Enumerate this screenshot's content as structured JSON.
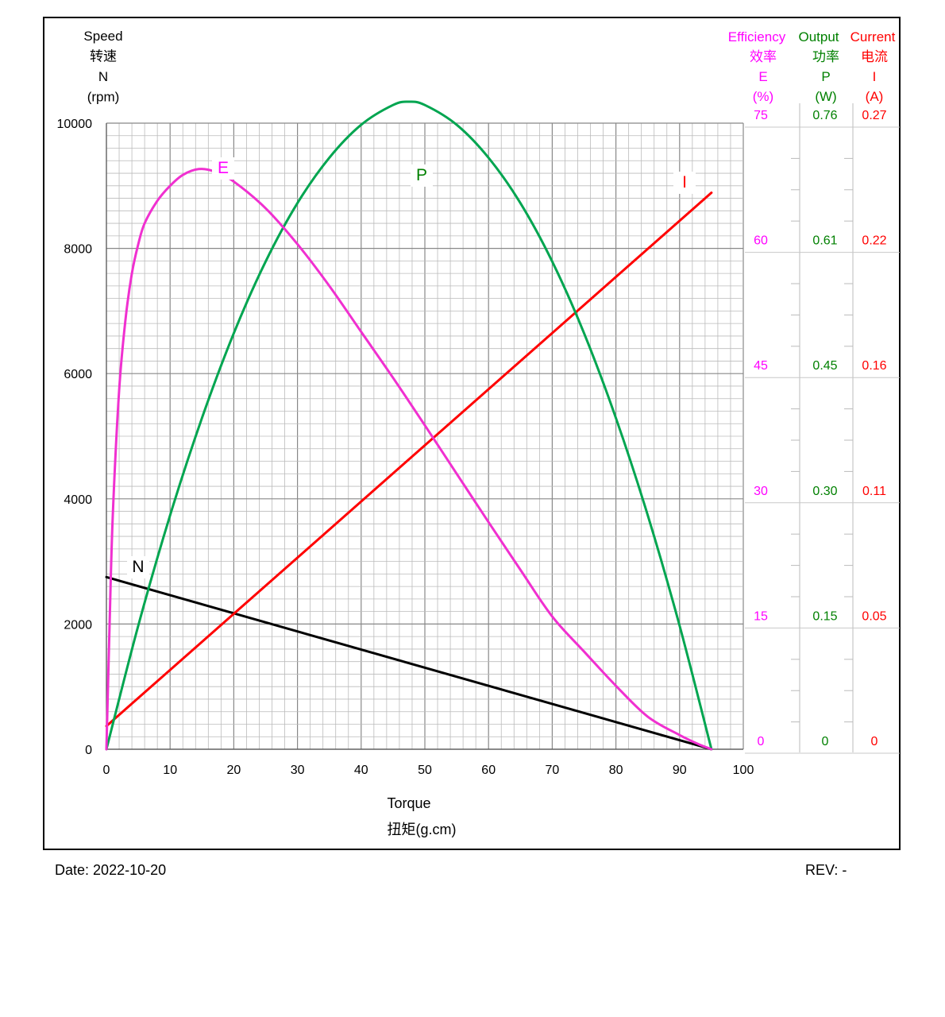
{
  "chart_data": {
    "type": "line",
    "x_axis": {
      "label_en": "Torque",
      "label_cn": "扭矩(g.cm)",
      "range": [
        0,
        100
      ],
      "ticks": [
        0,
        10,
        20,
        30,
        40,
        50,
        60,
        70,
        80,
        90,
        100
      ]
    },
    "y_axis_speed": {
      "label_lines": [
        "Speed",
        "转速",
        "N",
        "(rpm)"
      ],
      "range": [
        0,
        10000
      ],
      "ticks": [
        0,
        2000,
        4000,
        6000,
        8000,
        10000
      ]
    },
    "y_axis_efficiency": {
      "label_lines": [
        "Efficiency",
        "效率",
        "E",
        "(%)"
      ],
      "color": "#ff00ff",
      "range": [
        0,
        75
      ],
      "tick_labels": [
        "0",
        "15",
        "30",
        "45",
        "60",
        "75"
      ]
    },
    "y_axis_output": {
      "label_lines": [
        "Output",
        "功率",
        "P",
        "(W)"
      ],
      "color": "#008000",
      "range": [
        0,
        0.76
      ],
      "tick_labels": [
        "0",
        "0.15",
        "0.30",
        "0.45",
        "0.61",
        "0.76"
      ]
    },
    "y_axis_current": {
      "label_lines": [
        "Current",
        "电流",
        "I",
        "(A)"
      ],
      "color": "#ff0000",
      "range": [
        0,
        0.27
      ],
      "tick_labels": [
        "0",
        "0.05",
        "0.11",
        "0.16",
        "0.22",
        "0.27"
      ]
    },
    "series": [
      {
        "name": "N",
        "axis": "speed",
        "color": "#000000",
        "x": [
          0,
          95
        ],
        "y": [
          2750,
          0
        ]
      },
      {
        "name": "I",
        "axis": "current",
        "color": "#ff0000",
        "x": [
          0,
          95
        ],
        "y": [
          0.01,
          0.24
        ]
      },
      {
        "name": "P",
        "axis": "output",
        "color": "#00a550",
        "x": [
          0,
          5,
          10,
          15,
          20,
          25,
          30,
          35,
          40,
          45,
          47.5,
          50,
          55,
          60,
          65,
          70,
          75,
          80,
          85,
          90,
          95
        ],
        "y": [
          0,
          0.15,
          0.284,
          0.402,
          0.505,
          0.592,
          0.663,
          0.718,
          0.758,
          0.782,
          0.786,
          0.782,
          0.758,
          0.718,
          0.663,
          0.592,
          0.505,
          0.402,
          0.284,
          0.15,
          0
        ]
      },
      {
        "name": "E",
        "axis": "efficiency",
        "color": "#f030d0",
        "x": [
          0,
          0.5,
          1,
          2,
          3,
          4,
          5,
          6,
          8,
          10,
          12,
          14.5,
          17,
          20,
          25,
          30,
          35,
          40,
          45,
          50,
          55,
          60,
          65,
          70,
          75,
          80,
          85,
          90,
          93,
          95
        ],
        "y": [
          0,
          15.0,
          28.0,
          43.0,
          51.5,
          57.0,
          60.5,
          63.0,
          65.7,
          67.5,
          68.8,
          69.5,
          69.2,
          68.0,
          64.8,
          60.5,
          55.5,
          50.0,
          44.5,
          38.8,
          33.0,
          27.2,
          21.5,
          15.9,
          11.7,
          7.6,
          3.9,
          1.7,
          0.6,
          0
        ]
      }
    ],
    "curve_labels": [
      "N",
      "E",
      "P",
      "I"
    ]
  },
  "footer": {
    "date_label": "Date:",
    "date_value": "2022-10-20",
    "rev_label": "REV:",
    "rev_value": "-"
  }
}
